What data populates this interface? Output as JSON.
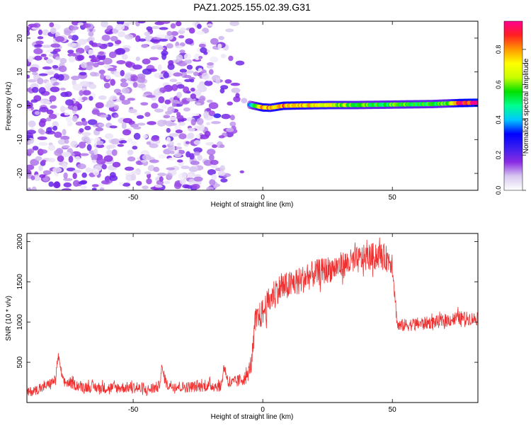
{
  "title": "PAZ1.2025.155.02.39.G31",
  "chart_data": [
    {
      "type": "heatmap",
      "title": "PAZ1.2025.155.02.39.G31",
      "xlabel": "Height of straight line (km)",
      "ylabel": "Frequency (Hz)",
      "xlim": [
        -91,
        83
      ],
      "ylim": [
        -25,
        25
      ],
      "xticks": [
        -50,
        0,
        50
      ],
      "yticks": [
        -20,
        -10,
        0,
        10,
        20
      ],
      "grid": false,
      "colorbar": {
        "label": "Normalized spectral amplitude",
        "range": [
          0,
          0.96
        ],
        "ticks": [
          0.0,
          0.2,
          0.4,
          0.6,
          0.8
        ],
        "colors": [
          "#ffffff",
          "#d8c8f0",
          "#8a2be2",
          "#3b1ef0",
          "#0000ff",
          "#00c8ff",
          "#00ff90",
          "#00e000",
          "#c8ff00",
          "#ffff00",
          "#ff9900",
          "#ff2020",
          "#ff0090"
        ]
      },
      "noise_region": {
        "x": [
          -91,
          -7
        ],
        "y": [
          -25,
          25
        ],
        "amplitude": [
          0.02,
          0.2
        ]
      },
      "signal_ridge": [
        {
          "x": -5,
          "freq": 0.3,
          "amplitude": 0.35
        },
        {
          "x": 0,
          "freq": -0.5,
          "amplitude": 0.85
        },
        {
          "x": 3,
          "freq": -0.6,
          "amplitude": 0.75
        },
        {
          "x": 8,
          "freq": 0.0,
          "amplitude": 0.85
        },
        {
          "x": 15,
          "freq": 0.1,
          "amplitude": 0.75
        },
        {
          "x": 25,
          "freq": 0.2,
          "amplitude": 0.7
        },
        {
          "x": 35,
          "freq": 0.2,
          "amplitude": 0.6
        },
        {
          "x": 45,
          "freq": 0.3,
          "amplitude": 0.55
        },
        {
          "x": 55,
          "freq": 0.4,
          "amplitude": 0.6
        },
        {
          "x": 65,
          "freq": 0.5,
          "amplitude": 0.55
        },
        {
          "x": 72,
          "freq": 0.7,
          "amplitude": 0.6
        },
        {
          "x": 76,
          "freq": 0.8,
          "amplitude": 0.9
        },
        {
          "x": 83,
          "freq": 0.9,
          "amplitude": 0.95
        }
      ]
    },
    {
      "type": "line",
      "xlabel": "Height of straight line (km)",
      "ylabel": "SNR (10 * v/v)",
      "xlim": [
        -91,
        83
      ],
      "ylim": [
        0,
        2100
      ],
      "xticks": [
        -50,
        0,
        50
      ],
      "yticks": [
        500,
        1000,
        1500,
        2000
      ],
      "grid": false,
      "series": [
        {
          "color": "#ee3030",
          "x": [
            -91,
            -85,
            -80,
            -79,
            -77,
            -70,
            -60,
            -50,
            -45,
            -40,
            -39,
            -37,
            -30,
            -20,
            -16,
            -15,
            -13,
            -10,
            -6,
            -4,
            -3,
            0,
            5,
            10,
            20,
            30,
            40,
            45,
            50,
            51,
            52,
            60,
            70,
            75,
            83
          ],
          "y": [
            120,
            180,
            280,
            580,
            260,
            200,
            180,
            190,
            150,
            200,
            420,
            220,
            190,
            210,
            200,
            450,
            230,
            260,
            320,
            560,
            1000,
            1120,
            1400,
            1450,
            1600,
            1700,
            1800,
            1830,
            1750,
            1300,
            950,
            980,
            1010,
            1050,
            1040
          ],
          "noise_amplitude": [
            60,
            60,
            60,
            60,
            60,
            70,
            70,
            70,
            70,
            70,
            70,
            70,
            70,
            70,
            70,
            70,
            70,
            80,
            90,
            120,
            160,
            180,
            180,
            180,
            170,
            170,
            170,
            170,
            160,
            120,
            80,
            80,
            80,
            90,
            80
          ]
        }
      ]
    }
  ]
}
